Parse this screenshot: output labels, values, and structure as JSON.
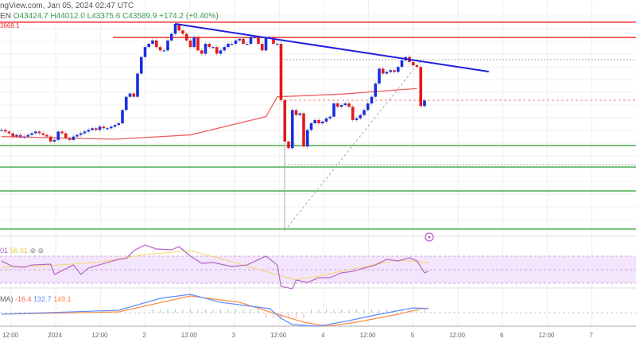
{
  "header": {
    "source": "ngView.com, Jan 05, 2024 02:47 UTC",
    "symbol_tail": "EN",
    "open": "O43424.7",
    "high": "H44012.0",
    "low": "L43375.6",
    "close": "C43589.9",
    "change": "+174.2 (+0.40%)",
    "level_label": "3868.1"
  },
  "rsi_header": {
    "value": "01",
    "ma": "56.91",
    "icons": "⊘ ⊘"
  },
  "macd_header": {
    "label": "MA)",
    "hist": "-16.4",
    "macd": "132.7",
    "signal": "149.1"
  },
  "colors": {
    "up": "#1a2fe0",
    "down": "#e61919",
    "ma": "#f06060",
    "resistance": "#f03030",
    "trend": "#2020e0",
    "support": "#4caf50",
    "rsi": "#b565c9",
    "rsi_ma": "#f5d76e",
    "macd": "#5b8cff",
    "signal": "#ff8c42",
    "rsi_band": "#f3e5fb"
  },
  "chart_data": [
    {
      "type": "candlestick",
      "title": "",
      "x_tick_labels": [
        "12:00",
        "2024",
        "12:00",
        "2",
        "12:00",
        "3",
        "12:00",
        "4",
        "12:00",
        "5",
        "12:00",
        "6",
        "12:00",
        "7"
      ],
      "closes": [
        42700,
        42650,
        42600,
        42500,
        42550,
        42480,
        42500,
        42550,
        42600,
        42650,
        42600,
        42550,
        42500,
        42350,
        42400,
        42650,
        42600,
        42450,
        42400,
        42500,
        42550,
        42600,
        42650,
        42700,
        42750,
        42700,
        42800,
        42750,
        42750,
        42800,
        42850,
        42900,
        43300,
        43700,
        43800,
        43700,
        44400,
        44900,
        45200,
        45300,
        45400,
        45200,
        45100,
        45100,
        45400,
        45600,
        45900,
        45700,
        45600,
        45400,
        45200,
        45500,
        45100,
        45000,
        45300,
        45200,
        45200,
        45000,
        45100,
        45200,
        45300,
        45300,
        45400,
        45450,
        45300,
        45300,
        45500,
        45500,
        45300,
        45100,
        45500,
        45500,
        45300,
        45300,
        43600,
        42350,
        42150,
        43300,
        43150,
        43200,
        42200,
        42700,
        42900,
        43000,
        42900,
        42950,
        43050,
        43100,
        43500,
        43400,
        43450,
        43500,
        43400,
        43000,
        43050,
        43150,
        43300,
        43500,
        43700,
        44100,
        44550,
        44400,
        44450,
        44500,
        44450,
        44600,
        44800,
        44900,
        44750,
        44650,
        44600,
        43420,
        43590
      ],
      "moving_average": [
        [
          0,
          42500
        ],
        [
          30,
          42420
        ],
        [
          50,
          42550
        ],
        [
          70,
          43100
        ],
        [
          73,
          43700
        ],
        [
          90,
          43780
        ],
        [
          110,
          43950
        ]
      ],
      "horizontal_levels": {
        "resistance": [
          45950,
          45490
        ],
        "support": [
          42230,
          41580,
          40860,
          39710
        ]
      },
      "trend_line": [
        [
          46,
          45900
        ],
        [
          129,
          44460
        ]
      ],
      "rsi": [
        [
          0,
          62.9
        ],
        [
          3,
          54.7
        ],
        [
          6,
          53.5
        ],
        [
          8,
          57
        ],
        [
          13,
          58.2
        ],
        [
          14,
          42.9
        ],
        [
          19,
          57
        ],
        [
          21,
          42.9
        ],
        [
          23,
          52.4
        ],
        [
          28,
          60.6
        ],
        [
          31,
          65.3
        ],
        [
          33,
          66.5
        ],
        [
          35,
          78.2
        ],
        [
          38,
          86.5
        ],
        [
          41,
          80.6
        ],
        [
          45,
          79.4
        ],
        [
          47,
          84.1
        ],
        [
          50,
          70
        ],
        [
          53,
          59.4
        ],
        [
          56,
          60.6
        ],
        [
          61,
          54.7
        ],
        [
          65,
          57
        ],
        [
          70,
          70
        ],
        [
          73,
          57
        ],
        [
          74,
          25.3
        ],
        [
          77,
          21.8
        ],
        [
          78,
          34.7
        ],
        [
          81,
          31.2
        ],
        [
          84,
          38.2
        ],
        [
          87,
          38.2
        ],
        [
          90,
          45.3
        ],
        [
          93,
          47.6
        ],
        [
          99,
          57
        ],
        [
          102,
          65.3
        ],
        [
          105,
          62.9
        ],
        [
          108,
          67.6
        ],
        [
          110,
          62.9
        ],
        [
          112,
          45.3
        ],
        [
          113,
          47.6
        ]
      ],
      "rsi_ma": [
        [
          0,
          53.5
        ],
        [
          12,
          55.9
        ],
        [
          25,
          60.6
        ],
        [
          38,
          72.4
        ],
        [
          50,
          78.2
        ],
        [
          58,
          66.5
        ],
        [
          69,
          48.8
        ],
        [
          78,
          34.7
        ],
        [
          86,
          42.9
        ],
        [
          94,
          52.4
        ],
        [
          105,
          64.1
        ],
        [
          113,
          60.6
        ]
      ],
      "macd": [
        [
          0,
          -50
        ],
        [
          31,
          78
        ],
        [
          42,
          468
        ],
        [
          50,
          598
        ],
        [
          58,
          338
        ],
        [
          71,
          130
        ],
        [
          74,
          -182
        ],
        [
          77,
          -390
        ],
        [
          84,
          -442
        ],
        [
          92,
          -260
        ],
        [
          100,
          -52
        ],
        [
          109,
          156
        ],
        [
          113,
          132.7
        ]
      ],
      "signal": [
        [
          0,
          -50
        ],
        [
          31,
          26
        ],
        [
          50,
          546
        ],
        [
          63,
          338
        ],
        [
          73,
          -52
        ],
        [
          80,
          -312
        ],
        [
          86,
          -442
        ],
        [
          94,
          -312
        ],
        [
          105,
          -52
        ],
        [
          111,
          130
        ],
        [
          113,
          149.1
        ]
      ]
    }
  ]
}
